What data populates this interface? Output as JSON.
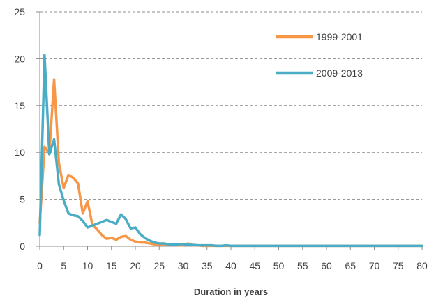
{
  "chart_data": {
    "type": "line",
    "title": "",
    "xlabel": "Duration in years",
    "ylabel": "",
    "xlim": [
      0,
      80
    ],
    "ylim": [
      0,
      25
    ],
    "xticks": [
      0,
      5,
      10,
      15,
      20,
      25,
      30,
      35,
      40,
      45,
      50,
      55,
      60,
      65,
      70,
      75,
      80
    ],
    "yticks": [
      0,
      5,
      10,
      15,
      20,
      25
    ],
    "grid": "horizontal dashed",
    "legend_position": "top-right",
    "x": [
      0,
      1,
      2,
      3,
      4,
      5,
      6,
      7,
      8,
      9,
      10,
      11,
      12,
      13,
      14,
      15,
      16,
      17,
      18,
      19,
      20,
      21,
      22,
      23,
      24,
      25,
      26,
      27,
      28,
      29,
      30,
      31,
      32,
      33,
      34,
      35,
      36,
      37,
      38,
      39,
      40,
      41,
      42,
      43,
      44,
      45,
      46,
      47,
      48,
      49,
      50,
      51,
      52,
      53,
      54,
      55,
      56,
      57,
      58,
      59,
      60,
      61,
      62,
      63,
      64,
      65,
      66,
      67,
      68,
      69,
      70,
      71,
      72,
      73,
      74,
      75,
      76,
      77,
      78,
      79,
      80
    ],
    "series": [
      {
        "name": "1999-2001",
        "color": "#F79646",
        "values": [
          2.5,
          10.6,
          9.9,
          17.8,
          8.9,
          6.2,
          7.6,
          7.3,
          6.7,
          3.5,
          4.8,
          2.3,
          1.8,
          1.2,
          0.8,
          0.9,
          0.7,
          1.0,
          1.1,
          0.7,
          0.5,
          0.4,
          0.4,
          0.3,
          0.2,
          0.2,
          0.2,
          0.15,
          0.15,
          0.1,
          0.1,
          0.3,
          0.1,
          0.1,
          0.05,
          0.05,
          0.05,
          0.05,
          0.05,
          0.05,
          0.05,
          0.05,
          0.05,
          0.05,
          0.05,
          0.05,
          0.05,
          0.05,
          0.05,
          0.05,
          0.05,
          0.05,
          0.05,
          0.05,
          0.05,
          0.05,
          0.05,
          0.05,
          0.05,
          0.05,
          0.05,
          0.05,
          0.05,
          0.05,
          0.05,
          0.05,
          0.05,
          0.05,
          0.05,
          0.05,
          0.05,
          0.05,
          0.05,
          0.05,
          0.05,
          0.05,
          0.05,
          0.05,
          0.05,
          0.05,
          0.05
        ]
      },
      {
        "name": "2009-2013",
        "color": "#4BACC6",
        "values": [
          1.2,
          20.4,
          9.8,
          11.4,
          6.6,
          4.9,
          3.5,
          3.3,
          3.2,
          2.7,
          2.0,
          2.2,
          2.4,
          2.6,
          2.8,
          2.6,
          2.4,
          3.4,
          2.9,
          1.9,
          2.0,
          1.3,
          0.9,
          0.6,
          0.4,
          0.3,
          0.3,
          0.2,
          0.2,
          0.2,
          0.25,
          0.15,
          0.15,
          0.1,
          0.1,
          0.1,
          0.1,
          0.05,
          0.05,
          0.1,
          0.05,
          0.05,
          0.05,
          0.05,
          0.05,
          0.05,
          0.05,
          0.05,
          0.05,
          0.05,
          0.05,
          0.05,
          0.05,
          0.05,
          0.05,
          0.05,
          0.05,
          0.05,
          0.05,
          0.05,
          0.05,
          0.05,
          0.05,
          0.05,
          0.05,
          0.05,
          0.05,
          0.05,
          0.05,
          0.05,
          0.05,
          0.05,
          0.05,
          0.05,
          0.05,
          0.05,
          0.05,
          0.05,
          0.05,
          0.05,
          0.05
        ]
      }
    ]
  }
}
